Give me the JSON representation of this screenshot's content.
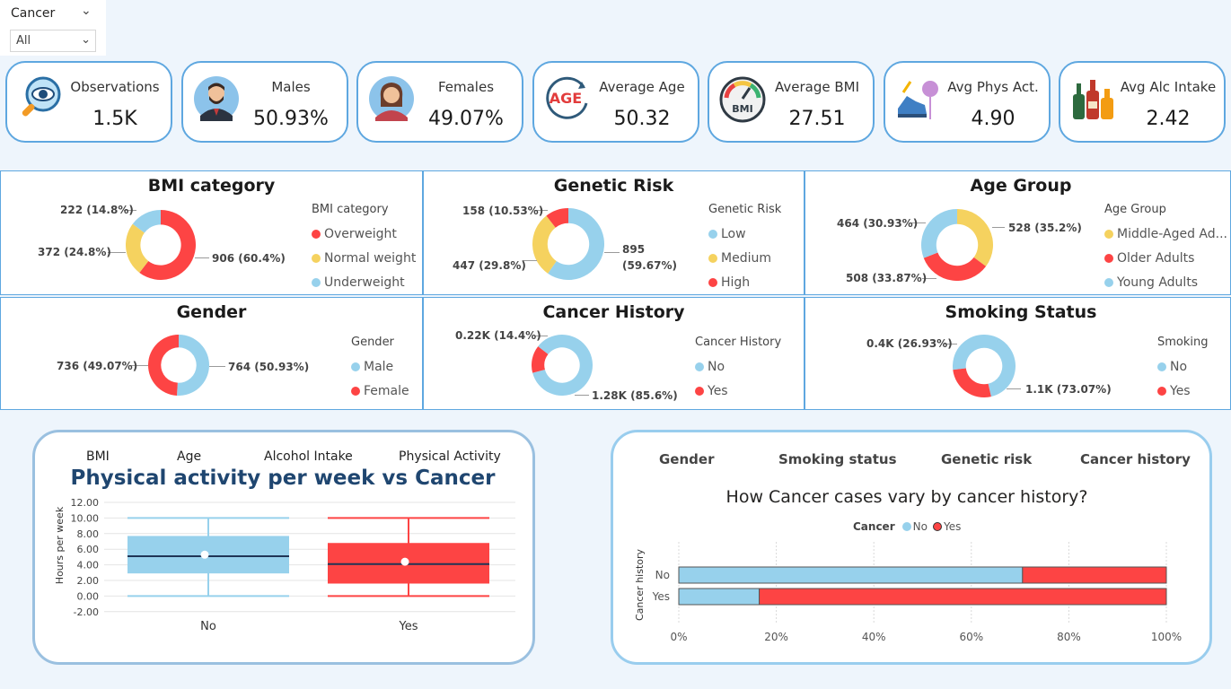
{
  "slicer": {
    "title": "Cancer",
    "value": "All"
  },
  "kpis": [
    {
      "label": "Observations",
      "value": "1.5K",
      "icon": "magnifier-eye-icon"
    },
    {
      "label": "Males",
      "value": "50.93%",
      "icon": "male-avatar-icon"
    },
    {
      "label": "Females",
      "value": "49.07%",
      "icon": "female-avatar-icon"
    },
    {
      "label": "Average Age",
      "value": "50.32",
      "icon": "age-icon",
      "icon_text": "AGE"
    },
    {
      "label": "Average BMI",
      "value": "27.51",
      "icon": "bmi-gauge-icon",
      "icon_text": "BMI"
    },
    {
      "label": "Avg Phys Act.",
      "value": "4.90",
      "icon": "running-shoe-icon"
    },
    {
      "label": "Avg Alc Intake",
      "value": "2.42",
      "icon": "bottles-icon"
    }
  ],
  "colors": {
    "red": "#fd4444",
    "yellow": "#f5d25f",
    "blue": "#97d1ec",
    "navy": "#1f4670",
    "border": "#5ea7e0"
  },
  "donuts": [
    {
      "id": "bmi",
      "title": "BMI category",
      "legend_title": "BMI category",
      "legend": [
        "Overweight",
        "Normal weight",
        "Underweight"
      ],
      "labels": [
        "906 (60.4%)",
        "372 (24.8%)",
        "222 (14.8%)"
      ],
      "chart_data": {
        "type": "pie",
        "categories": [
          "Overweight",
          "Normal weight",
          "Underweight"
        ],
        "values": [
          906,
          372,
          222
        ],
        "percent": [
          60.4,
          24.8,
          14.8
        ]
      }
    },
    {
      "id": "genetic",
      "title": "Genetic Risk",
      "legend_title": "Genetic Risk",
      "legend": [
        "Low",
        "Medium",
        "High"
      ],
      "labels": [
        "895",
        "(59.67%)",
        "447 (29.8%)",
        "158 (10.53%)"
      ],
      "chart_data": {
        "type": "pie",
        "categories": [
          "Low",
          "Medium",
          "High"
        ],
        "values": [
          895,
          447,
          158
        ],
        "percent": [
          59.67,
          29.8,
          10.53
        ]
      }
    },
    {
      "id": "agegroup",
      "title": "Age Group",
      "legend_title": "Age Group",
      "legend": [
        "Middle-Aged Ad...",
        "Older Adults",
        "Young Adults"
      ],
      "labels": [
        "528 (35.2%)",
        "508 (33.87%)",
        "464 (30.93%)"
      ],
      "chart_data": {
        "type": "pie",
        "categories": [
          "Middle-Aged Adults",
          "Older Adults",
          "Young Adults"
        ],
        "values": [
          528,
          508,
          464
        ],
        "percent": [
          35.2,
          33.87,
          30.93
        ]
      }
    },
    {
      "id": "gender",
      "title": "Gender",
      "legend_title": "Gender",
      "legend": [
        "Male",
        "Female"
      ],
      "labels": [
        "764 (50.93%)",
        "736 (49.07%)"
      ],
      "chart_data": {
        "type": "pie",
        "categories": [
          "Male",
          "Female"
        ],
        "values": [
          764,
          736
        ],
        "percent": [
          50.93,
          49.07
        ]
      }
    },
    {
      "id": "history",
      "title": "Cancer History",
      "legend_title": "Cancer History",
      "legend": [
        "No",
        "Yes"
      ],
      "labels": [
        "1.28K (85.6%)",
        "0.22K (14.4%)"
      ],
      "chart_data": {
        "type": "pie",
        "categories": [
          "No",
          "Yes"
        ],
        "values": [
          1280,
          220
        ],
        "percent": [
          85.6,
          14.4
        ]
      }
    },
    {
      "id": "smoking",
      "title": "Smoking Status",
      "legend_title": "Smoking",
      "legend": [
        "No",
        "Yes"
      ],
      "labels": [
        "1.1K (73.07%)",
        "0.4K (26.93%)"
      ],
      "chart_data": {
        "type": "pie",
        "categories": [
          "No",
          "Yes"
        ],
        "values": [
          1100,
          400
        ],
        "percent": [
          73.07,
          26.93
        ]
      }
    }
  ],
  "boxplot": {
    "tabs": [
      "BMI",
      "Age",
      "Alcohol Intake",
      "Physical Activity"
    ],
    "title": "Physical activity per week vs Cancer",
    "ylabel": "Hours per week",
    "yticks": [
      "12.00",
      "10.00",
      "8.00",
      "6.00",
      "4.00",
      "2.00",
      "0.00",
      "-2.00"
    ],
    "categories": [
      "No",
      "Yes"
    ],
    "chart_data": {
      "type": "box",
      "categories": [
        "No",
        "Yes"
      ],
      "ylim": [
        -2,
        12
      ],
      "min": [
        0.0,
        0.0
      ],
      "q1": [
        2.9,
        1.6
      ],
      "median": [
        5.1,
        4.1
      ],
      "q3": [
        7.7,
        6.8
      ],
      "max": [
        10.0,
        10.0
      ],
      "mean": [
        5.3,
        4.4
      ]
    }
  },
  "stackedbar": {
    "tabs": [
      "Gender",
      "Smoking status",
      "Genetic risk",
      "Cancer history"
    ],
    "title": "How Cancer cases vary by cancer history?",
    "legend_title": "Cancer",
    "legend": [
      "No",
      "Yes"
    ],
    "ylabel": "Cancer history",
    "categories": [
      "No",
      "Yes"
    ],
    "xticks": [
      "0%",
      "20%",
      "40%",
      "60%",
      "80%",
      "100%"
    ],
    "chart_data": {
      "type": "bar",
      "orientation": "horizontal-stacked-100",
      "categories": [
        "No",
        "Yes"
      ],
      "series": [
        {
          "name": "No",
          "values": [
            70.5,
            16.5
          ]
        },
        {
          "name": "Yes",
          "values": [
            29.5,
            83.5
          ]
        }
      ],
      "xlim": [
        0,
        100
      ]
    }
  }
}
